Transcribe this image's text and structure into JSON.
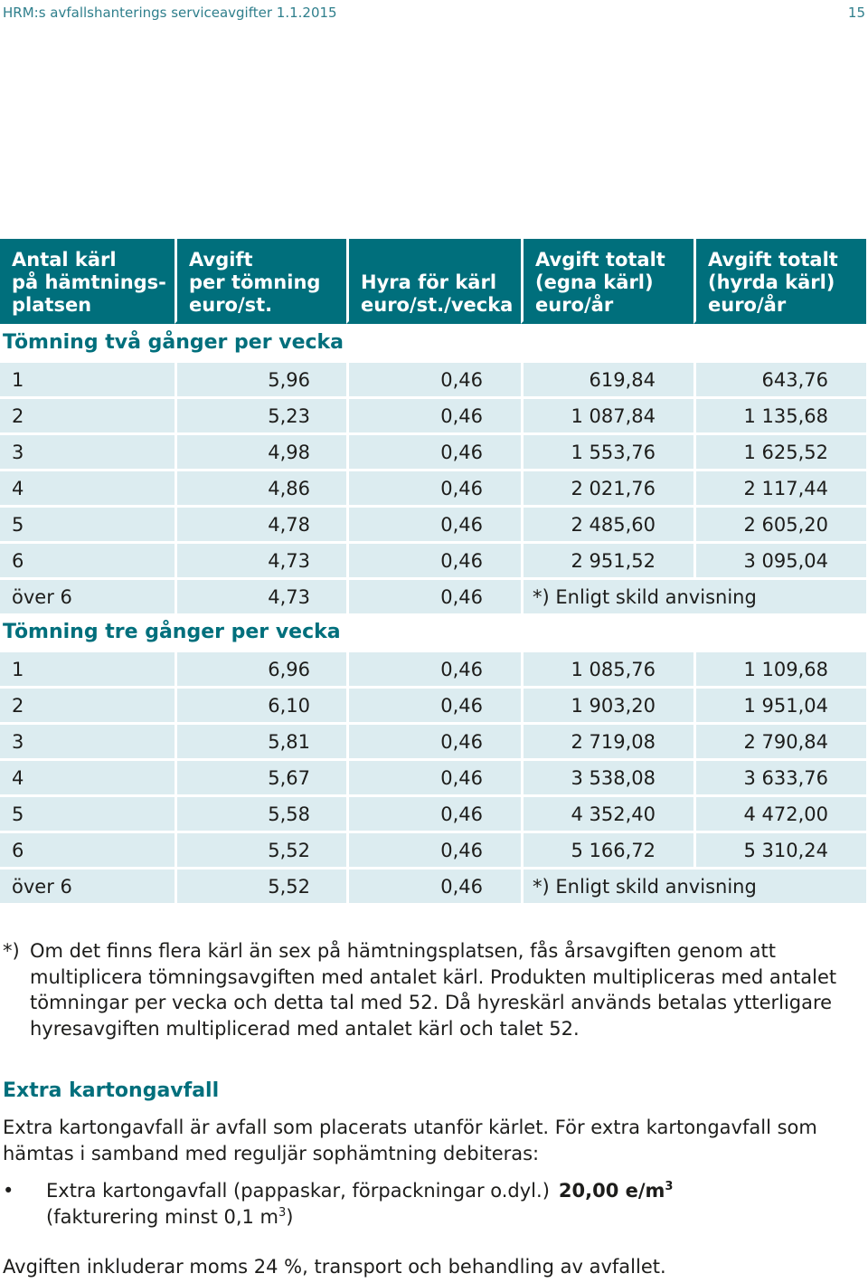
{
  "page": {
    "running_header": "HRM:s avfallshanterings serviceavgifter 1.1.2015",
    "page_number": "15"
  },
  "table": {
    "headers": [
      [
        "Antal kärl",
        "på hämtnings-",
        "platsen"
      ],
      [
        "Avgift",
        "per tömning",
        "euro/st."
      ],
      [
        "Hyra för kärl",
        "euro/st./vecka"
      ],
      [
        "Avgift totalt",
        "(egna kärl)",
        "euro/år"
      ],
      [
        "Avgift totalt",
        "(hyrda kärl)",
        "euro/år"
      ]
    ],
    "sections": [
      {
        "title": "Tömning två gånger per vecka",
        "rows": [
          [
            "1",
            "5,96",
            "0,46",
            "619,84",
            "643,76"
          ],
          [
            "2",
            "5,23",
            "0,46",
            "1 087,84",
            "1 135,68"
          ],
          [
            "3",
            "4,98",
            "0,46",
            "1 553,76",
            "1 625,52"
          ],
          [
            "4",
            "4,86",
            "0,46",
            "2 021,76",
            "2 117,44"
          ],
          [
            "5",
            "4,78",
            "0,46",
            "2 485,60",
            "2 605,20"
          ],
          [
            "6",
            "4,73",
            "0,46",
            "2 951,52",
            "3 095,04"
          ]
        ],
        "last_row": [
          "över 6",
          "4,73",
          "0,46",
          "*) Enligt skild anvisning"
        ]
      },
      {
        "title": "Tömning tre gånger per vecka",
        "rows": [
          [
            "1",
            "6,96",
            "0,46",
            "1 085,76",
            "1 109,68"
          ],
          [
            "2",
            "6,10",
            "0,46",
            "1 903,20",
            "1 951,04"
          ],
          [
            "3",
            "5,81",
            "0,46",
            "2 719,08",
            "2 790,84"
          ],
          [
            "4",
            "5,67",
            "0,46",
            "3 538,08",
            "3 633,76"
          ],
          [
            "5",
            "5,58",
            "0,46",
            "4 352,40",
            "4 472,00"
          ],
          [
            "6",
            "5,52",
            "0,46",
            "5 166,72",
            "5 310,24"
          ]
        ],
        "last_row": [
          "över 6",
          "5,52",
          "0,46",
          "*) Enligt skild anvisning"
        ]
      }
    ]
  },
  "footnote": {
    "mark": "*)",
    "lines": [
      "Om det finns flera kärl än sex på hämtningsplatsen, fås årsavgiften genom att",
      "multiplicera tömningsavgiften med antalet kärl. Produkten multipliceras med antalet",
      "tömningar per vecka och detta tal med 52. Då hyreskärl används betalas ytterligare",
      "hyresavgiften multiplicerad med antalet kärl och talet 52."
    ]
  },
  "extra": {
    "title": "Extra kartongavfall",
    "description_lines": [
      "Extra kartongavfall är avfall som placerats utanför kärlet. För extra kartongavfall som",
      "hämtas i samband med reguljär sophämtning debiteras:"
    ],
    "bullet": {
      "marker": "•",
      "text": "Extra kartongavfall (pappaskar, förpackningar o.dyl.)",
      "price": "20,00 e/m",
      "price_sup": "3",
      "note": "(fakturering minst 0,1 m",
      "note_sup": "3",
      "note_end": ")"
    },
    "vat_note": "Avgiften inkluderar moms 24 %, transport och behandling av avfallet."
  },
  "colors": {
    "header_teal": "#006f7c",
    "row_fill": "#dcecf0",
    "running_header": "#2f7f8c"
  }
}
